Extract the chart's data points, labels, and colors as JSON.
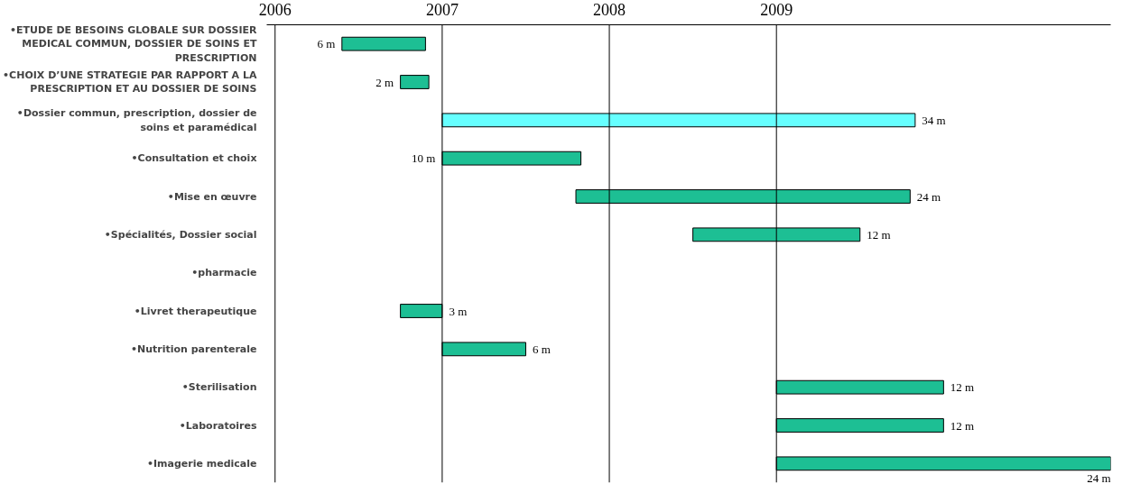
{
  "chart_data": {
    "type": "bar",
    "orientation": "horizontal",
    "categories": [
      "•ETUDE DE BESOINS GLOBALE SUR DOSSIER MEDICAL COMMUN, DOSSIER DE SOINS ET PRESCRIPTION",
      "•CHOIX D’UNE STRATEGIE PAR RAPPORT A LA PRESCRIPTION ET AU DOSSIER DE SOINS",
      "•Dossier commun, prescription, dossier de soins et paramédical",
      "•Consultation et choix",
      "•Mise en œuvre",
      "•Spécialités, Dossier social",
      "•pharmacie",
      "•Livret therapeutique",
      "•Nutrition parenterale",
      "•Sterilisation",
      "•Laboratoires",
      "•Imagerie medicale"
    ],
    "base": [
      2006.4,
      2006.75,
      2007,
      2007,
      2007.8,
      2008.5,
      null,
      2006.75,
      2007,
      2009,
      2009,
      2009
    ],
    "values": [
      0.5,
      0.17,
      2.83,
      0.83,
      2,
      1,
      null,
      0.25,
      0.5,
      1,
      1,
      2
    ],
    "colors": [
      "#1dbf94",
      "#1dbf94",
      "#66ffff",
      "#1dbf94",
      "#1dbf94",
      "#1dbf94",
      "#1dbf94",
      "#1dbf94",
      "#1dbf94",
      "#1dbf94",
      "#1dbf94",
      "#1dbf94"
    ],
    "annotations": [
      {
        "text": "6 m",
        "x": 2006.4,
        "y": "•ETUDE DE BESOINS GLOBALE SUR DOSSIER MEDICAL COMMUN, DOSSIER DE SOINS ET PRESCRIPTION"
      },
      {
        "text": "2 m",
        "x": 2006.75,
        "y": "•CHOIX D’UNE STRATEGIE PAR RAPPORT A LA PRESCRIPTION ET AU DOSSIER DE SOINS"
      },
      {
        "text": "34 m",
        "x": 2009.83,
        "y": "•Dossier commun, prescription, dossier de soins et paramédical"
      },
      {
        "text": "10 m",
        "x": 2007,
        "y": "•Consultation et choix"
      },
      {
        "text": "24 m",
        "x": 2009.8,
        "y": "•Mise en œuvre"
      },
      {
        "text": "12 m",
        "x": 2009.5,
        "y": "•Spécialités, Dossier social"
      },
      {
        "text": "3 m",
        "x": 2007,
        "y": "•Livret therapeutique"
      },
      {
        "text": "6 m",
        "x": 2007.5,
        "y": "•Nutrition parenterale"
      },
      {
        "text": "12 m",
        "x": 2010,
        "y": "•Sterilisation"
      },
      {
        "text": "12 m",
        "x": 2010,
        "y": "•Laboratoires"
      },
      {
        "text": "24 m",
        "x": 2011,
        "y": "•Imagerie medicale"
      }
    ],
    "xlim": [
      2005.95,
      2011
    ],
    "xticks": [
      2006,
      2007,
      2008,
      2009
    ],
    "ref_lines": [
      {
        "axis": "x",
        "value": 2006,
        "label": null,
        "color": "#000000"
      },
      {
        "axis": "x",
        "value": 2007,
        "label": null,
        "color": "#000000"
      },
      {
        "axis": "x",
        "value": 2008,
        "label": null,
        "color": "#000000"
      },
      {
        "axis": "x",
        "value": 2009,
        "label": null,
        "color": "#000000"
      }
    ],
    "grid": false
  }
}
